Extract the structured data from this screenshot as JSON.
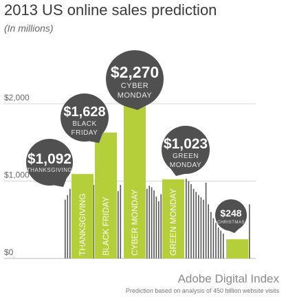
{
  "title": "2013 US online sales prediction",
  "subtitle": "(In millions)",
  "brand": "Adobe Digital Index",
  "footnote": "Prediction based on analysis of 450 billion website visits",
  "colors": {
    "highlight_bar": "#b5cf3a",
    "background_bar": "#555555",
    "bubble": "#505050",
    "bubble_text": "#ffffff",
    "axis_label": "#666666",
    "gridline": "#d6d6d6"
  },
  "chart_data": {
    "type": "bar",
    "ylim": [
      0,
      2400
    ],
    "yticks": [
      0,
      1000,
      2000
    ],
    "ytick_labels": [
      "$0",
      "$1,000",
      "$2,000"
    ],
    "grid": true,
    "highlighted": [
      {
        "label": "THANKSGIVING",
        "value": 1092,
        "value_label": "$1,092",
        "bubble_label": [
          "THANKSGIVING"
        ]
      },
      {
        "label": "BLACK FRIDAY",
        "value": 1628,
        "value_label": "$1,628",
        "bubble_label": [
          "BLACK",
          "FRIDAY"
        ]
      },
      {
        "label": "CYBER MONDAY",
        "value": 2270,
        "value_label": "$2,270",
        "bubble_label": [
          "CYBER",
          "MONDAY"
        ]
      },
      {
        "label": "GREEN MONDAY",
        "value": 1023,
        "value_label": "$1,023",
        "bubble_label": [
          "GREEN",
          "MONDAY"
        ]
      },
      {
        "label": "",
        "value": 248,
        "value_label": "$248",
        "bubble_label": [
          "CHRISTMAS"
        ]
      }
    ],
    "background_daily_values": [
      [
        760,
        820,
        900
      ],
      [
        920,
        950
      ],
      [
        870,
        950
      ],
      [
        900,
        940,
        920,
        880,
        800,
        740,
        830
      ],
      [
        1030,
        1000,
        960,
        900,
        860,
        820,
        790,
        760,
        980,
        700,
        600,
        520,
        460,
        400,
        360,
        320
      ],
      [
        700
      ]
    ]
  }
}
